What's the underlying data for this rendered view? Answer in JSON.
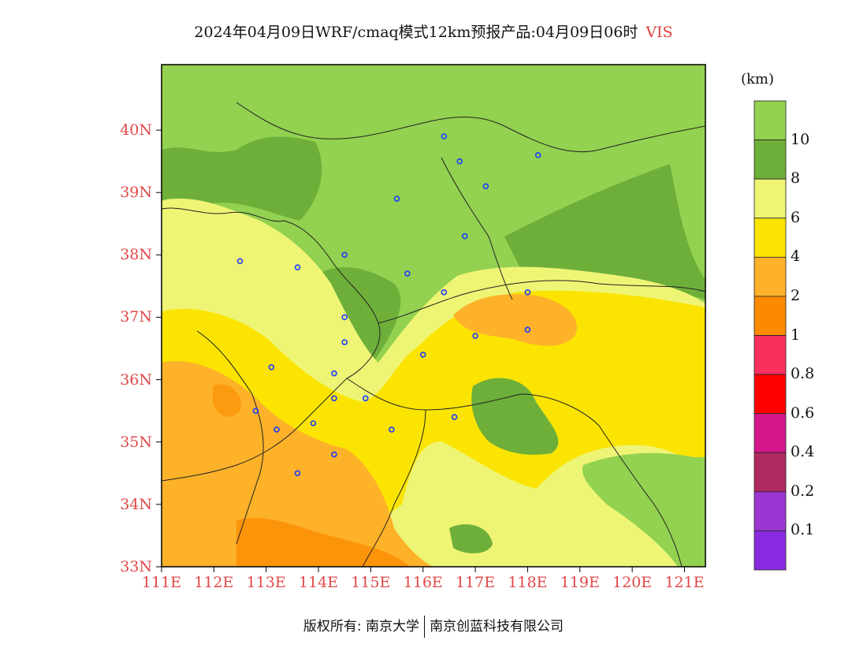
{
  "title": {
    "main": "2024年04月09日WRF/cmaq模式12km预报产品:04月09日06时",
    "variable": "VIS"
  },
  "unit": "(km)",
  "lat_labels": [
    "33N",
    "34N",
    "35N",
    "36N",
    "37N",
    "38N",
    "39N",
    "40N"
  ],
  "lon_labels": [
    "111E",
    "112E",
    "113E",
    "114E",
    "115E",
    "116E",
    "117E",
    "118E",
    "119E",
    "120E",
    "121E"
  ],
  "colorbar": {
    "colors": [
      "#93d150",
      "#6eaf3a",
      "#eef575",
      "#fbe402",
      "#fdb22a",
      "#fb8a00",
      "#fb2f5e",
      "#ff0000",
      "#d3178a",
      "#b02a62",
      "#9a37d2",
      "#8a2be2"
    ],
    "labels": [
      "10",
      "8",
      "6",
      "4",
      "2",
      "1",
      "0.8",
      "0.6",
      "0.4",
      "0.2",
      "0.1"
    ]
  },
  "cities": [
    [
      116.4,
      39.9
    ],
    [
      116.7,
      39.5
    ],
    [
      117.2,
      39.1
    ],
    [
      118.2,
      39.6
    ],
    [
      115.5,
      38.9
    ],
    [
      116.8,
      38.3
    ],
    [
      112.5,
      37.9
    ],
    [
      113.6,
      37.8
    ],
    [
      114.5,
      38.0
    ],
    [
      115.7,
      37.7
    ],
    [
      116.4,
      37.4
    ],
    [
      118.0,
      37.4
    ],
    [
      114.5,
      37.0
    ],
    [
      114.5,
      36.6
    ],
    [
      116.0,
      36.4
    ],
    [
      117.0,
      36.7
    ],
    [
      118.0,
      36.8
    ],
    [
      113.1,
      36.2
    ],
    [
      114.3,
      36.1
    ],
    [
      114.3,
      35.7
    ],
    [
      114.9,
      35.7
    ],
    [
      112.8,
      35.5
    ],
    [
      113.2,
      35.2
    ],
    [
      113.9,
      35.3
    ],
    [
      115.4,
      35.2
    ],
    [
      116.6,
      35.4
    ],
    [
      114.3,
      34.8
    ],
    [
      113.6,
      34.5
    ]
  ],
  "copyright": {
    "left": "版权所有: 南京大学",
    "right": "南京创蓝科技有限公司"
  }
}
